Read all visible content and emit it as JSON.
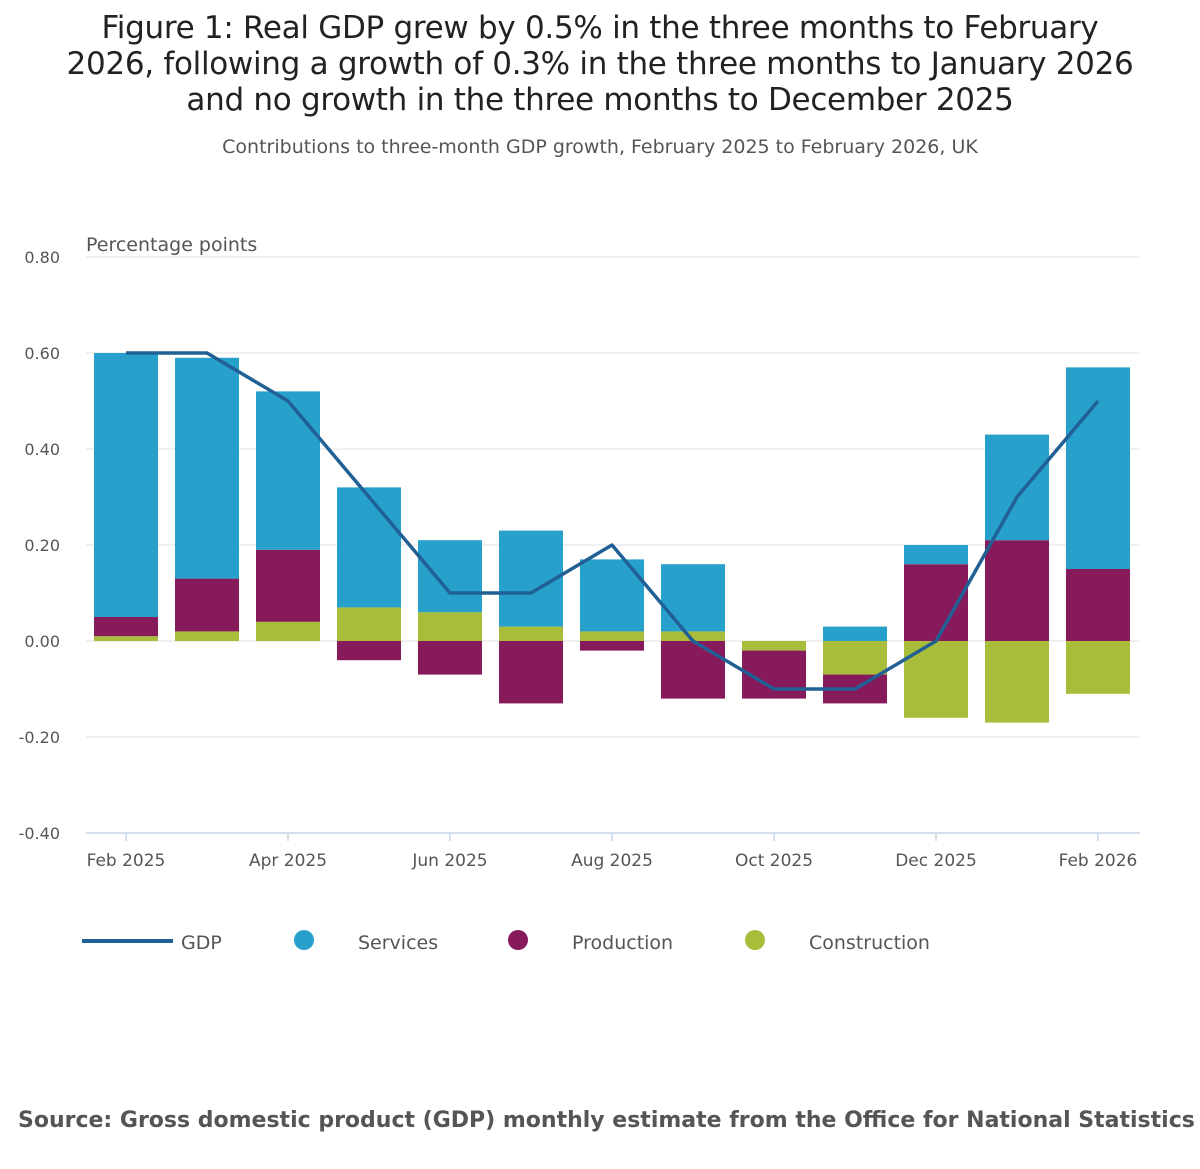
{
  "chart_data": {
    "type": "bar",
    "stacked": true,
    "title": "Figure 1: Real GDP grew by 0.5% in the three months to February 2026, following a growth of 0.3% in the three months to January 2026 and no growth in the three months to December 2025",
    "subtitle": "Contributions to three-month GDP growth, February 2025 to February 2026, UK",
    "ylabel": "Percentage points",
    "xlabel": "",
    "ylim": [
      -0.4,
      0.8
    ],
    "yticks": [
      0.8,
      0.6,
      0.4,
      0.2,
      0.0,
      -0.2,
      -0.4
    ],
    "ytick_labels": [
      "0.80",
      "0.60",
      "0.40",
      "0.20",
      "0.00",
      "-0.20",
      "-0.40"
    ],
    "grid": true,
    "categories": [
      "Feb 2025",
      "Mar 2025",
      "Apr 2025",
      "May 2025",
      "Jun 2025",
      "Jul 2025",
      "Aug 2025",
      "Sep 2025",
      "Oct 2025",
      "Nov 2025",
      "Dec 2025",
      "Jan 2026",
      "Feb 2026"
    ],
    "xtick_labels": [
      "Feb 2025",
      "",
      "Apr 2025",
      "",
      "Jun 2025",
      "",
      "Aug 2025",
      "",
      "Oct 2025",
      "",
      "Dec 2025",
      "",
      "Feb 2026"
    ],
    "series": [
      {
        "name": "Construction",
        "kind": "bar",
        "color": "#a8bd3a",
        "values": [
          0.01,
          0.02,
          0.04,
          0.07,
          0.06,
          0.03,
          0.02,
          0.02,
          -0.02,
          -0.07,
          -0.16,
          -0.17,
          -0.11
        ]
      },
      {
        "name": "Production",
        "kind": "bar",
        "color": "#871a5b",
        "values": [
          0.04,
          0.11,
          0.15,
          -0.04,
          -0.07,
          -0.13,
          -0.02,
          -0.12,
          -0.1,
          -0.06,
          0.16,
          0.21,
          0.15
        ]
      },
      {
        "name": "Services",
        "kind": "bar",
        "color": "#27a0cc",
        "values": [
          0.55,
          0.46,
          0.33,
          0.25,
          0.15,
          0.2,
          0.15,
          0.14,
          0.0,
          0.03,
          0.04,
          0.22,
          0.42
        ]
      },
      {
        "name": "GDP",
        "kind": "line",
        "color": "#206095",
        "values": [
          0.6,
          0.6,
          0.5,
          0.3,
          0.1,
          0.1,
          0.2,
          0.0,
          -0.1,
          -0.1,
          0.0,
          0.3,
          0.5
        ]
      }
    ],
    "legend": {
      "placement": "bottom",
      "order": [
        "GDP",
        "Services",
        "Production",
        "Construction"
      ]
    },
    "source": "Source: Gross domestic product (GDP) monthly estimate from the Office for National Statistics"
  }
}
